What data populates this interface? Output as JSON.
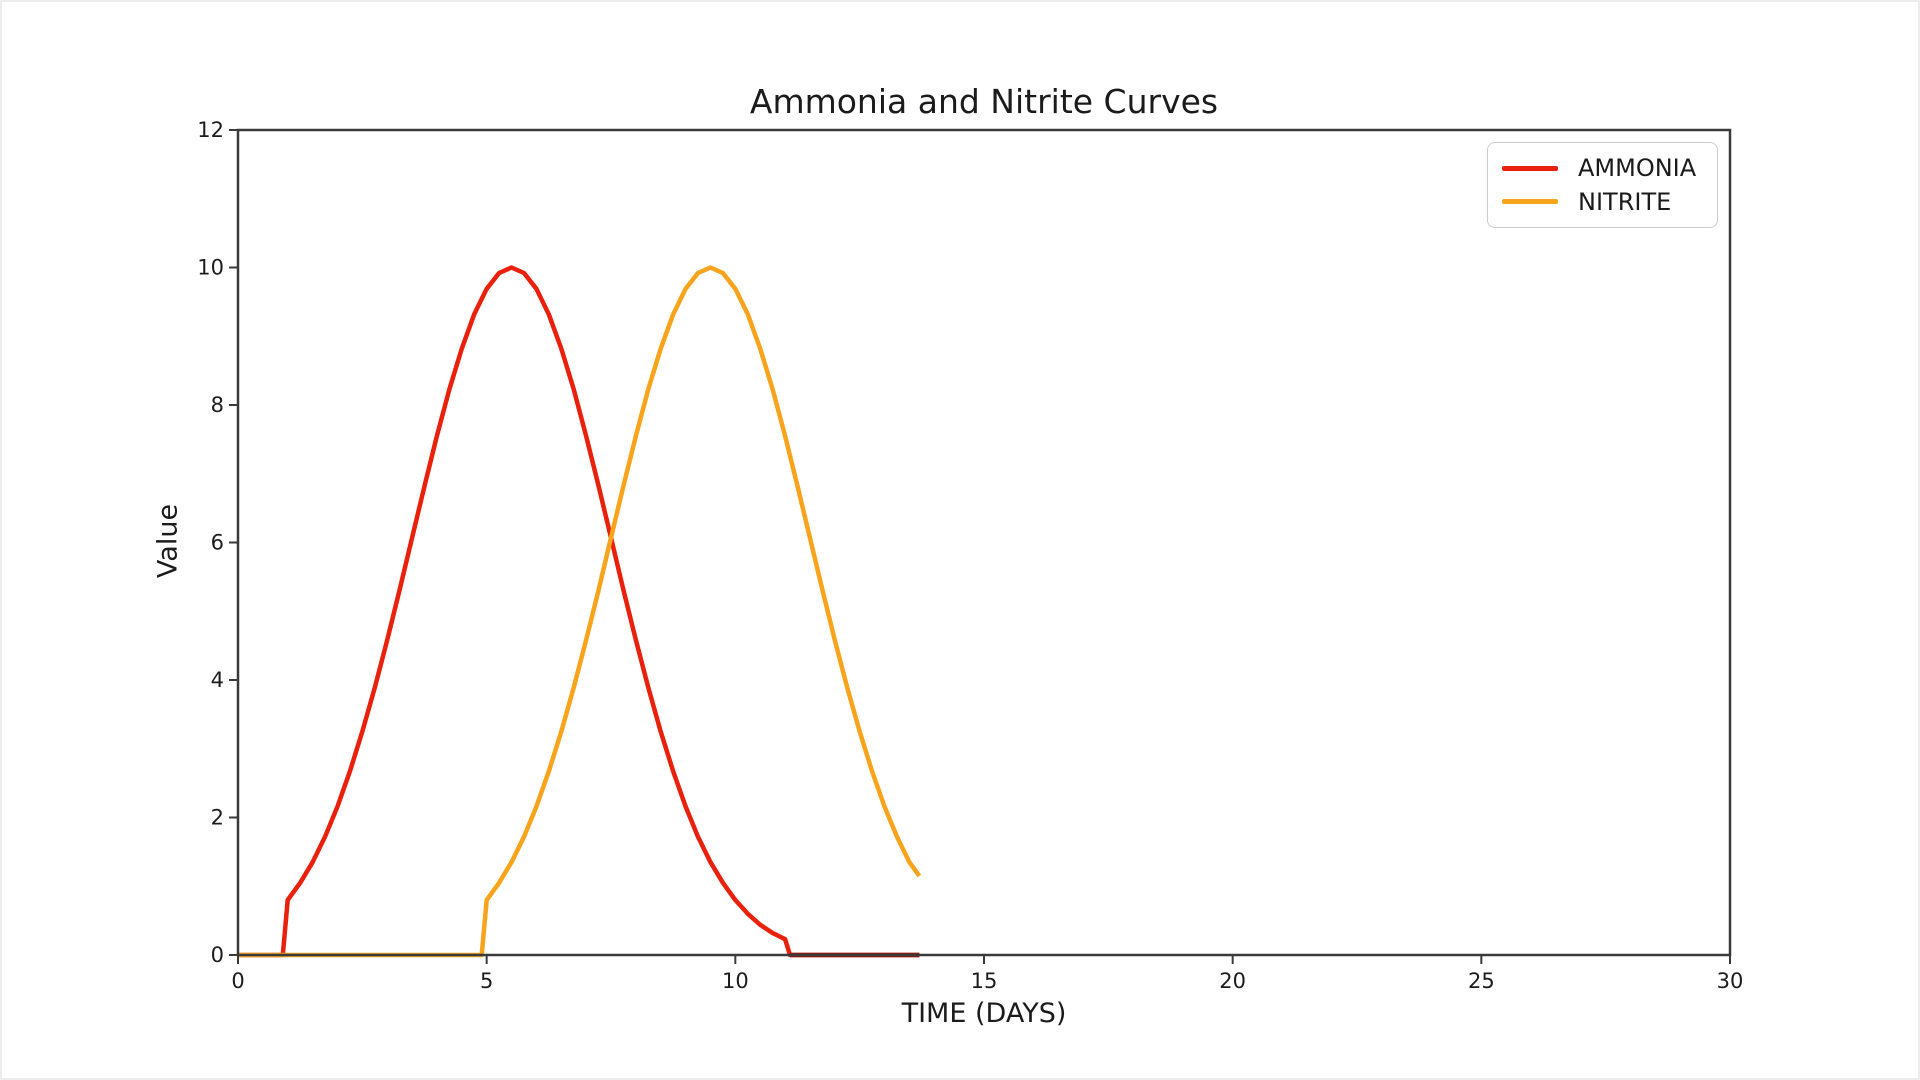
{
  "chart_data": {
    "type": "line",
    "title": "Ammonia and Nitrite Curves",
    "xlabel": "TIME (DAYS)",
    "ylabel": "Value",
    "xlim": [
      0,
      30
    ],
    "ylim": [
      0,
      12
    ],
    "xticks": [
      0,
      5,
      10,
      15,
      20,
      25,
      30
    ],
    "yticks": [
      0,
      2,
      4,
      6,
      8,
      10,
      12
    ],
    "grid": false,
    "axis_color": "#3a3a3a",
    "text_color": "#1c1c1c",
    "legend": {
      "position": "upper right",
      "entries": [
        {
          "label": "AMMONIA",
          "color": "#e8200c"
        },
        {
          "label": "NITRITE",
          "color": "#f7a41c"
        }
      ]
    },
    "series": [
      {
        "name": "AMMONIA",
        "color": "#e8200c",
        "points": [
          [
            0,
            0
          ],
          [
            0.9,
            0
          ],
          [
            1,
            0.8
          ],
          [
            1.25,
            1.05
          ],
          [
            1.5,
            1.35
          ],
          [
            1.75,
            1.72
          ],
          [
            2,
            2.16
          ],
          [
            2.25,
            2.67
          ],
          [
            2.5,
            3.25
          ],
          [
            2.75,
            3.89
          ],
          [
            3,
            4.58
          ],
          [
            3.25,
            5.31
          ],
          [
            3.5,
            6.07
          ],
          [
            3.75,
            6.82
          ],
          [
            4,
            7.55
          ],
          [
            4.25,
            8.23
          ],
          [
            4.5,
            8.82
          ],
          [
            4.75,
            9.32
          ],
          [
            5,
            9.69
          ],
          [
            5.25,
            9.92
          ],
          [
            5.5,
            10
          ],
          [
            5.75,
            9.92
          ],
          [
            6,
            9.69
          ],
          [
            6.25,
            9.32
          ],
          [
            6.5,
            8.82
          ],
          [
            6.75,
            8.23
          ],
          [
            7,
            7.55
          ],
          [
            7.25,
            6.82
          ],
          [
            7.5,
            6.07
          ],
          [
            7.75,
            5.31
          ],
          [
            8,
            4.58
          ],
          [
            8.25,
            3.89
          ],
          [
            8.5,
            3.25
          ],
          [
            8.75,
            2.67
          ],
          [
            9,
            2.16
          ],
          [
            9.25,
            1.72
          ],
          [
            9.5,
            1.35
          ],
          [
            9.75,
            1.05
          ],
          [
            10,
            0.8
          ],
          [
            10.25,
            0.6
          ],
          [
            10.5,
            0.44
          ],
          [
            10.75,
            0.32
          ],
          [
            11,
            0.23
          ],
          [
            11.1,
            0
          ],
          [
            13.7,
            0
          ]
        ]
      },
      {
        "name": "NITRITE",
        "color": "#f7a41c",
        "points": [
          [
            0,
            0
          ],
          [
            4.9,
            0
          ],
          [
            5,
            0.8
          ],
          [
            5.25,
            1.05
          ],
          [
            5.5,
            1.35
          ],
          [
            5.75,
            1.72
          ],
          [
            6,
            2.16
          ],
          [
            6.25,
            2.67
          ],
          [
            6.5,
            3.25
          ],
          [
            6.75,
            3.89
          ],
          [
            7,
            4.58
          ],
          [
            7.25,
            5.31
          ],
          [
            7.5,
            6.07
          ],
          [
            7.75,
            6.82
          ],
          [
            8,
            7.55
          ],
          [
            8.25,
            8.23
          ],
          [
            8.5,
            8.82
          ],
          [
            8.75,
            9.32
          ],
          [
            9,
            9.69
          ],
          [
            9.25,
            9.92
          ],
          [
            9.5,
            10
          ],
          [
            9.75,
            9.92
          ],
          [
            10,
            9.69
          ],
          [
            10.25,
            9.32
          ],
          [
            10.5,
            8.82
          ],
          [
            10.75,
            8.23
          ],
          [
            11,
            7.55
          ],
          [
            11.25,
            6.82
          ],
          [
            11.5,
            6.07
          ],
          [
            11.75,
            5.31
          ],
          [
            12,
            4.58
          ],
          [
            12.25,
            3.89
          ],
          [
            12.5,
            3.25
          ],
          [
            12.75,
            2.67
          ],
          [
            13,
            2.16
          ],
          [
            13.25,
            1.72
          ],
          [
            13.5,
            1.35
          ],
          [
            13.7,
            1.15
          ]
        ]
      }
    ],
    "overlap_tail": {
      "color": "#8e1a10",
      "from": 11.1,
      "to": 13.7
    }
  }
}
